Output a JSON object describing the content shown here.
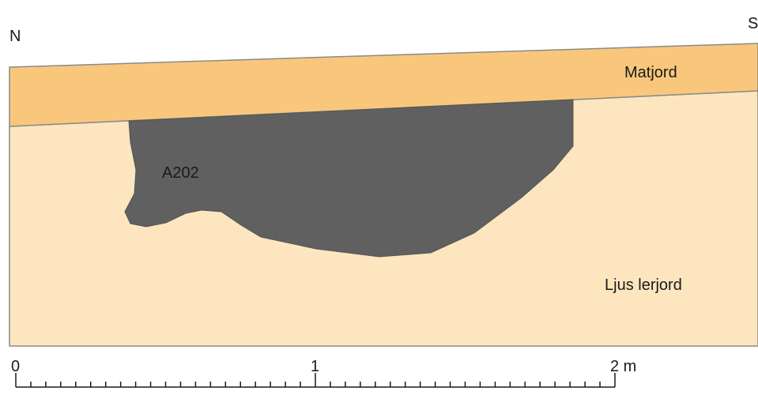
{
  "orientation": {
    "left": "N",
    "right": "S"
  },
  "layers": {
    "topsoil": "Matjord",
    "feature": "A202",
    "subsoil": "Ljus lerjord"
  },
  "scale": {
    "labels": [
      "0",
      "1",
      "2 m"
    ]
  }
}
